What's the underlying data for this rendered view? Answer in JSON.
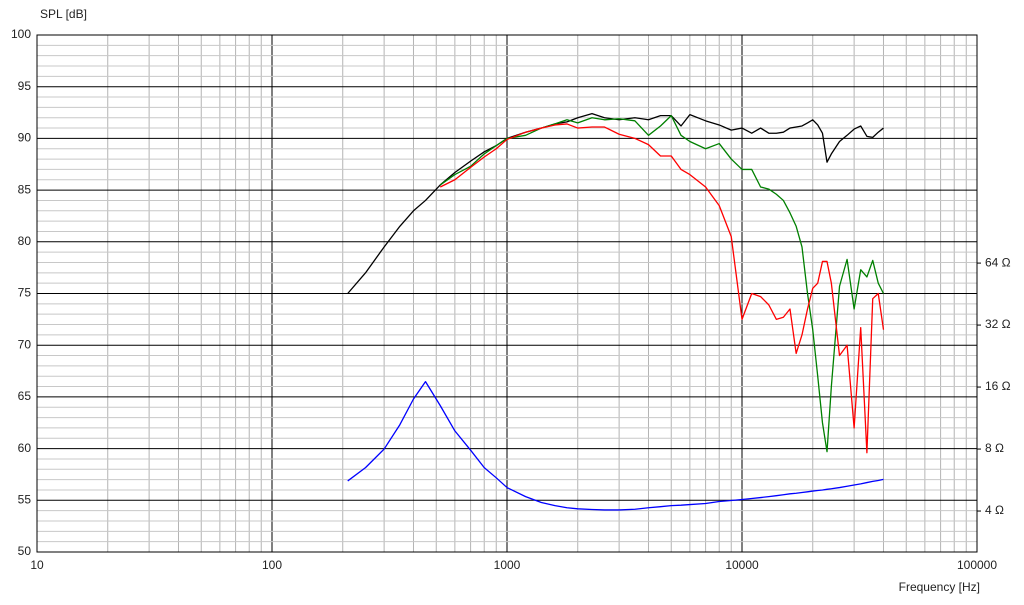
{
  "chart_data": {
    "type": "line",
    "y_label": "SPL [dB]",
    "x_label": "Frequency [Hz]",
    "x_log": true,
    "y2_log": true,
    "grid": true,
    "xlim": [
      10,
      100000
    ],
    "xticks": [
      10,
      100,
      1000,
      10000,
      100000
    ],
    "ylim": [
      50,
      100
    ],
    "yticks": [
      50,
      55,
      60,
      65,
      70,
      75,
      80,
      85,
      90,
      95,
      100
    ],
    "y2lim": [
      2.53,
      820
    ],
    "y2ticks": [
      {
        "value": 4,
        "label": "4 Ω"
      },
      {
        "value": 8,
        "label": "8 Ω"
      },
      {
        "value": 16,
        "label": "16 Ω"
      },
      {
        "value": 32,
        "label": "32 Ω"
      },
      {
        "value": 64,
        "label": "64 Ω"
      }
    ],
    "x": [
      210,
      250,
      300,
      350,
      400,
      450,
      520,
      600,
      700,
      800,
      900,
      1000,
      1200,
      1400,
      1600,
      1800,
      2000,
      2300,
      2600,
      3000,
      3500,
      4000,
      4500,
      5000,
      5500,
      6000,
      7000,
      8000,
      9000,
      10000,
      11000,
      12000,
      13000,
      14000,
      15000,
      16000,
      17000,
      18000,
      19000,
      20000,
      21000,
      22000,
      23000,
      24000,
      26000,
      28000,
      30000,
      32000,
      34000,
      36000,
      38000,
      40000
    ],
    "series": [
      {
        "color": "#000000",
        "values": [
          75,
          77,
          79.5,
          81.5,
          83,
          84,
          85.5,
          86.7,
          87.8,
          88.7,
          89.3,
          90,
          90.6,
          91,
          91.4,
          91.6,
          92,
          92.4,
          92,
          91.8,
          92,
          91.8,
          92.2,
          92.2,
          91.2,
          92.3,
          91.7,
          91.3,
          90.8,
          91,
          90.5,
          91,
          90.5,
          90.5,
          90.6,
          91,
          91.1,
          91.2,
          91.5,
          91.8,
          91.3,
          90.5,
          87.7,
          88.5,
          89.7,
          90.3,
          90.9,
          91.2,
          90.2,
          90.1,
          90.6,
          91
        ]
      },
      {
        "color": "#008000",
        "values": [
          null,
          null,
          null,
          null,
          null,
          null,
          85.5,
          86.5,
          87.3,
          88.5,
          89.3,
          90,
          90.3,
          91,
          91.4,
          91.8,
          91.5,
          92,
          91.8,
          91.9,
          91.7,
          90.3,
          91.2,
          92.2,
          90.3,
          89.7,
          89,
          89.5,
          88,
          87,
          87,
          85.3,
          85.1,
          84.6,
          84,
          82.8,
          81.5,
          79.5,
          75,
          71.5,
          67,
          62.5,
          59.7,
          66,
          75.7,
          78.3,
          73.5,
          77.3,
          76.6,
          78.2,
          76,
          75
        ]
      },
      {
        "color": "#ff0000",
        "values": [
          null,
          null,
          null,
          null,
          null,
          null,
          85.3,
          86,
          87.2,
          88.2,
          89,
          89.9,
          90.6,
          91,
          91.3,
          91.4,
          91,
          91.1,
          91.1,
          90.4,
          90,
          89.4,
          88.3,
          88.3,
          87,
          86.5,
          85.3,
          83.5,
          80.5,
          72.5,
          75,
          74.7,
          73.9,
          72.5,
          72.7,
          73.5,
          69.2,
          71,
          73.5,
          75.5,
          76,
          78.1,
          78.1,
          76,
          69,
          70,
          62,
          71.7,
          59.6,
          74.5,
          75,
          71.5
        ]
      },
      {
        "color": "#0000ff",
        "axis": "y2",
        "values": [
          5.6,
          6.5,
          8,
          10.5,
          14,
          17,
          13,
          9.8,
          7.9,
          6.5,
          5.8,
          5.2,
          4.7,
          4.4,
          4.25,
          4.15,
          4.1,
          4.07,
          4.05,
          4.05,
          4.08,
          4.15,
          4.2,
          4.25,
          4.27,
          4.3,
          4.35,
          4.45,
          4.5,
          4.55,
          4.6,
          4.65,
          4.7,
          4.75,
          4.8,
          4.85,
          4.88,
          4.92,
          4.96,
          5.0,
          5.03,
          5.06,
          5.1,
          5.13,
          5.2,
          5.28,
          5.35,
          5.42,
          5.5,
          5.57,
          5.63,
          5.7
        ]
      }
    ]
  }
}
